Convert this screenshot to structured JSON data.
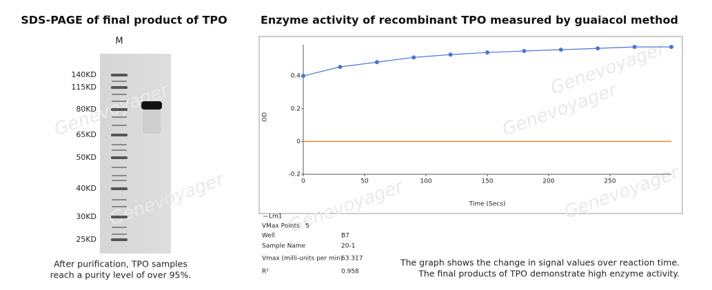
{
  "gel_panel": {
    "title": "SDS-PAGE of final product of TPO",
    "lane_label": "M",
    "markers": [
      "140KD",
      "115KD",
      "80KD",
      "65KD",
      "50KD",
      "40KD",
      "30KD",
      "25KD"
    ],
    "caption": [
      "After purification, TPO samples",
      "reach a purity level of over 95%."
    ]
  },
  "chart_data": {
    "type": "line",
    "title": "Enzyme activity of recombinant TPO measured by guaiacol method",
    "x_label": "Time (Secs)",
    "y_label": "OD",
    "x": [
      0,
      30,
      60,
      90,
      120,
      150,
      180,
      210,
      240,
      270,
      300
    ],
    "series": [
      {
        "name": "Lm1",
        "color": "#4a74d6",
        "values": [
          0.4,
          0.455,
          0.484,
          0.513,
          0.53,
          0.543,
          0.552,
          0.56,
          0.568,
          0.577,
          0.577
        ]
      }
    ],
    "zero_line": {
      "value": 0,
      "color": "#e8892b"
    },
    "xlim": [
      0,
      300
    ],
    "ylim": [
      -0.2,
      0.59
    ],
    "xticks": [
      0,
      50,
      100,
      150,
      200,
      250
    ],
    "yticks": [
      -0.2,
      0,
      0.2,
      0.4
    ]
  },
  "info_table": {
    "rows": [
      [
        "VMax Points",
        "5"
      ],
      [
        "Well",
        "B7"
      ],
      [
        "Sample Name",
        "20-1"
      ],
      [
        "Vmax (milli-units per min)",
        "63.317"
      ],
      [
        "R²",
        "0.958"
      ]
    ]
  },
  "chart_caption": [
    "The graph shows the change in signal values over reaction time.",
    "The final products of TPO demonstrate high enzyme activity."
  ],
  "watermark": "Genevoyager"
}
